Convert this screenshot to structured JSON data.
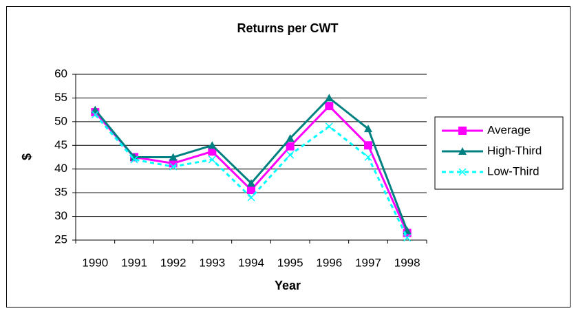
{
  "chart_data": {
    "type": "line",
    "title": "Returns per CWT",
    "x_label": "Year",
    "y_label": "$",
    "categories": [
      "1990",
      "1991",
      "1992",
      "1993",
      "1994",
      "1995",
      "1996",
      "1997",
      "1998"
    ],
    "series": [
      {
        "name": "Average",
        "color": "#ff00ff",
        "marker": "square",
        "dashed": false,
        "values": [
          52,
          42.5,
          41.2,
          43.7,
          35.6,
          44.8,
          53.3,
          45,
          26.5
        ]
      },
      {
        "name": "High-Third",
        "color": "#008080",
        "marker": "triangle",
        "dashed": false,
        "values": [
          52.5,
          42.5,
          42.5,
          45,
          37,
          46.5,
          55,
          48.5,
          27
        ]
      },
      {
        "name": "Low-Third",
        "color": "#00ffff",
        "marker": "x",
        "dashed": true,
        "values": [
          51.5,
          42,
          40.5,
          42,
          34,
          43,
          49,
          42.5,
          25.5
        ]
      }
    ],
    "ylim": [
      25,
      60
    ],
    "yticks": [
      25,
      30,
      35,
      40,
      45,
      50,
      55,
      60
    ],
    "grid": true,
    "legend": "right"
  }
}
